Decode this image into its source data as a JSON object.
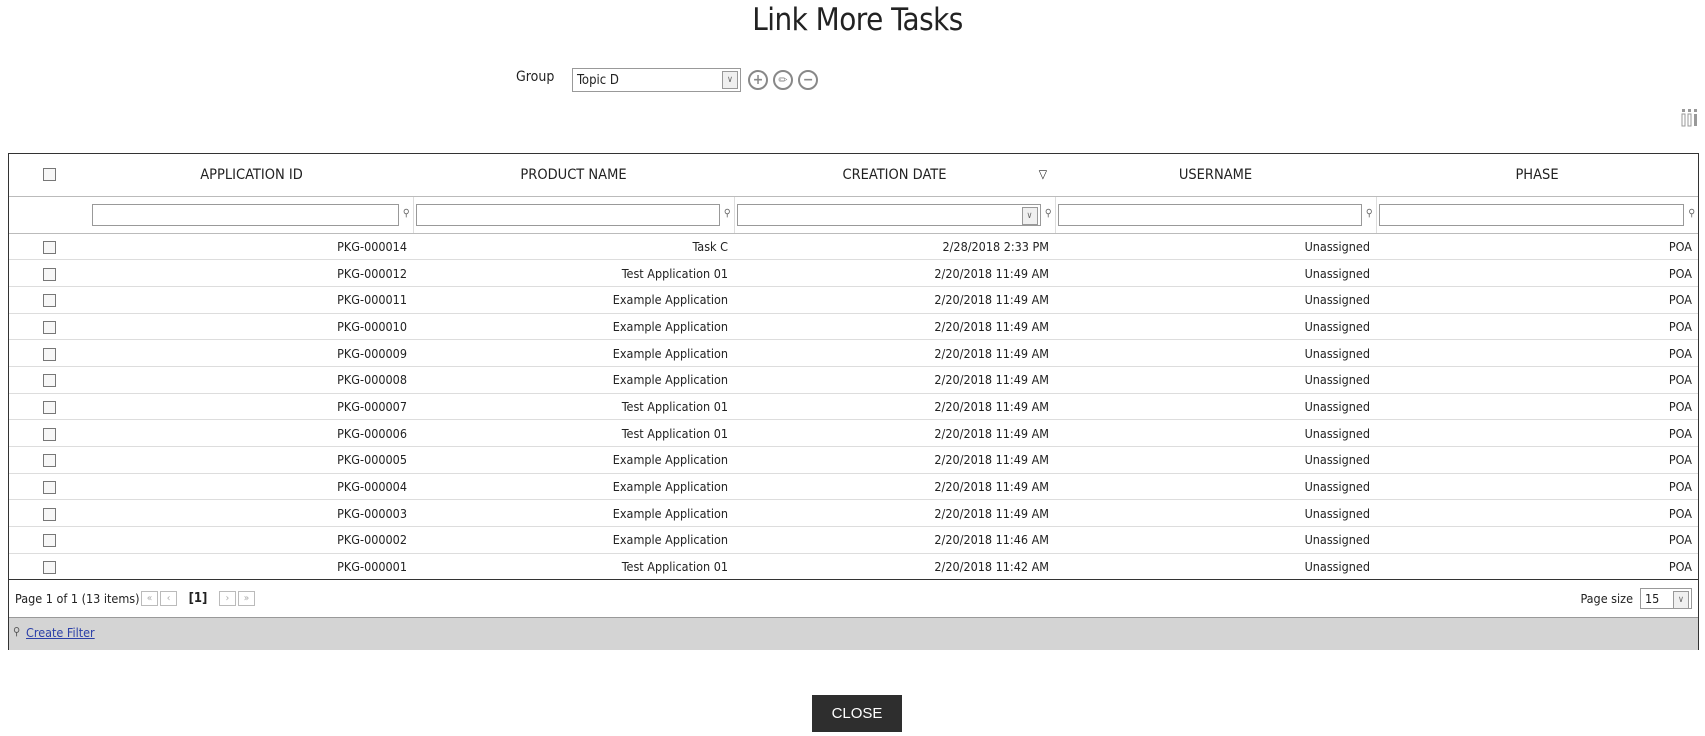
{
  "title": "Link More Tasks",
  "group": {
    "label": "Group",
    "value": "Topic D"
  },
  "grid": {
    "columns": [
      "APPLICATION ID",
      "PRODUCT NAME",
      "CREATION DATE",
      "USERNAME",
      "PHASE"
    ],
    "sorted_column": "CREATION DATE",
    "sort_direction": "descending",
    "rows": [
      [
        "PKG-000014",
        "Task C",
        "2/28/2018 2:33 PM",
        "Unassigned",
        "POA"
      ],
      [
        "PKG-000012",
        "Test Application 01",
        "2/20/2018 11:49 AM",
        "Unassigned",
        "POA"
      ],
      [
        "PKG-000011",
        "Example Application",
        "2/20/2018 11:49 AM",
        "Unassigned",
        "POA"
      ],
      [
        "PKG-000010",
        "Example Application",
        "2/20/2018 11:49 AM",
        "Unassigned",
        "POA"
      ],
      [
        "PKG-000009",
        "Example Application",
        "2/20/2018 11:49 AM",
        "Unassigned",
        "POA"
      ],
      [
        "PKG-000008",
        "Example Application",
        "2/20/2018 11:49 AM",
        "Unassigned",
        "POA"
      ],
      [
        "PKG-000007",
        "Test Application 01",
        "2/20/2018 11:49 AM",
        "Unassigned",
        "POA"
      ],
      [
        "PKG-000006",
        "Test Application 01",
        "2/20/2018 11:49 AM",
        "Unassigned",
        "POA"
      ],
      [
        "PKG-000005",
        "Example Application",
        "2/20/2018 11:49 AM",
        "Unassigned",
        "POA"
      ],
      [
        "PKG-000004",
        "Example Application",
        "2/20/2018 11:49 AM",
        "Unassigned",
        "POA"
      ],
      [
        "PKG-000003",
        "Example Application",
        "2/20/2018 11:49 AM",
        "Unassigned",
        "POA"
      ],
      [
        "PKG-000002",
        "Example Application",
        "2/20/2018 11:46 AM",
        "Unassigned",
        "POA"
      ],
      [
        "PKG-000001",
        "Test Application 01",
        "2/20/2018 11:42 AM",
        "Unassigned",
        "POA"
      ]
    ],
    "pager": {
      "summary": "Page 1 of 1 (13 items)",
      "current_page": "[1]",
      "page_size_label": "Page size",
      "page_size": "15"
    },
    "create_filter": "Create Filter"
  },
  "close_label": "CLOSE"
}
